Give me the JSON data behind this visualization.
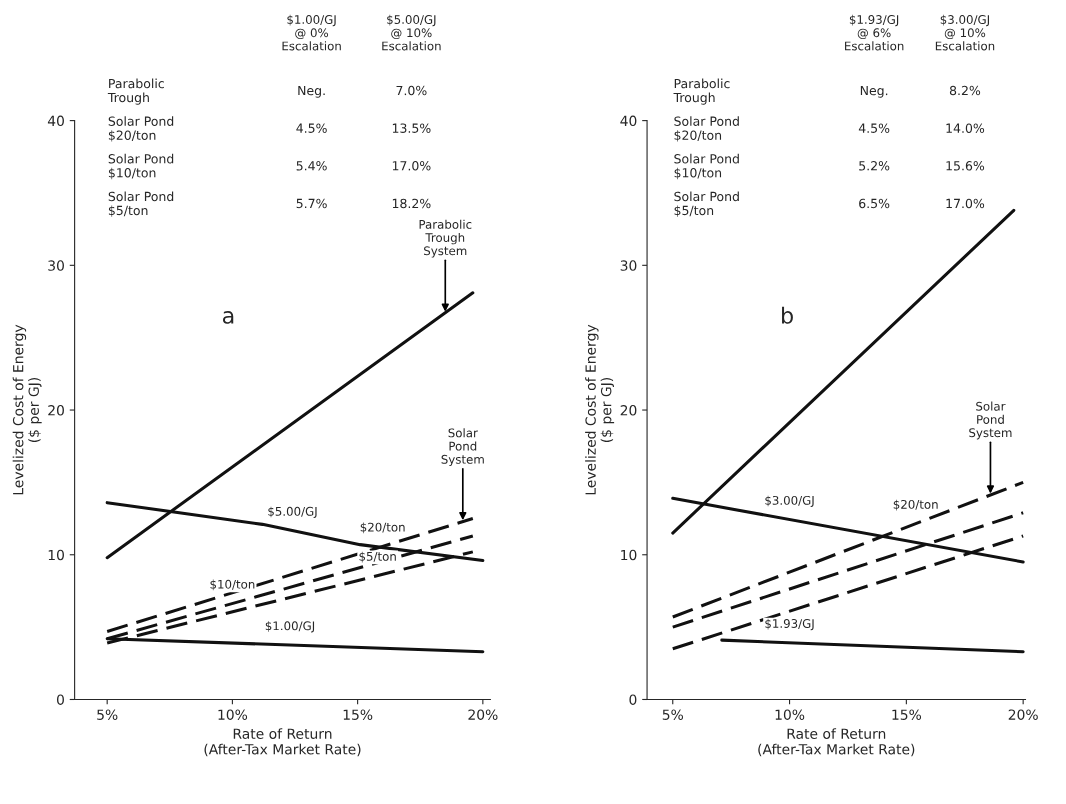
{
  "chart_data": [
    {
      "type": "line",
      "title": "a",
      "xlabel": "Rate of Return\n(After-Tax Market Rate)",
      "ylabel": "Levelized Cost of Energy\n($ per GJ)",
      "xlim": [
        3.7,
        20.3
      ],
      "ylim": [
        0,
        40
      ],
      "xticks": [
        {
          "value": 5,
          "label": "5%"
        },
        {
          "value": 10,
          "label": "10%"
        },
        {
          "value": 15,
          "label": "15%"
        },
        {
          "value": 20,
          "label": "20%"
        }
      ],
      "yticks": [
        0,
        10,
        20,
        30,
        40
      ],
      "series": [
        {
          "color": "#111111",
          "line_style": "solid",
          "x": [
            5,
            19.6
          ],
          "values": [
            9.8,
            28.1
          ]
        },
        {
          "color": "#111111",
          "line_style": "solid",
          "x": [
            5,
            11.2,
            15.1,
            20
          ],
          "values": [
            13.6,
            12.1,
            10.7,
            9.6
          ]
        },
        {
          "color": "#111111",
          "line_style": "solid",
          "x": [
            5,
            20
          ],
          "values": [
            4.2,
            3.3
          ]
        },
        {
          "color": "#111111",
          "line_style": "dashed",
          "x": [
            5,
            19.6
          ],
          "values": [
            4.7,
            12.5
          ]
        },
        {
          "color": "#111111",
          "line_style": "dashed",
          "x": [
            5,
            19.6
          ],
          "values": [
            4.2,
            11.3
          ]
        },
        {
          "color": "#111111",
          "line_style": "dashed",
          "x": [
            5,
            19.6
          ],
          "values": [
            3.9,
            10.2
          ]
        }
      ],
      "annotations": [
        "$1.00/GJ\n@ 0%\nEscalation",
        "$5.00/GJ\n@ 10%\nEscalation",
        "Parabolic\nTrough",
        "Neg.",
        "7.0%",
        "Solar Pond\n$20/ton",
        "4.5%",
        "13.5%",
        "Solar Pond\n$10/ton",
        "5.4%",
        "17.0%",
        "Solar Pond\n$5/ton",
        "5.7%",
        "18.2%",
        {
          "text": "Parabolic\nTrough\nSystem",
          "x": 18.5,
          "y": 26.7
        },
        {
          "text": "$5.00/GJ",
          "x": 12.4,
          "y": 11.67
        },
        {
          "text": "$1.00/GJ",
          "x": 12.3,
          "y": 3.76
        },
        {
          "text": "$20/ton",
          "x": 16,
          "y": 10.58
        },
        {
          "text": "$10/ton",
          "x": 10,
          "y": 6.63
        },
        {
          "text": "$5/ton",
          "x": 15.8,
          "y": 8.56
        },
        {
          "text": "Solar\nPond\nSystem",
          "x": 19.2,
          "y": 12.29
        }
      ]
    },
    {
      "type": "line",
      "title": "b",
      "xlabel": "Rate of Return\n(After-Tax Market Rate)",
      "ylabel": "Levelized Cost of Energy\n($ per GJ)",
      "xlim": [
        3.9,
        20.1
      ],
      "ylim": [
        0,
        40
      ],
      "xticks": [
        {
          "value": 5,
          "label": "5%"
        },
        {
          "value": 10,
          "label": "10%"
        },
        {
          "value": 15,
          "label": "15%"
        },
        {
          "value": 20,
          "label": "20%"
        }
      ],
      "yticks": [
        0,
        10,
        20,
        30,
        40
      ],
      "series": [
        {
          "color": "#111111",
          "line_style": "solid",
          "x": [
            5,
            19.6
          ],
          "values": [
            11.5,
            33.8
          ]
        },
        {
          "color": "#111111",
          "line_style": "solid",
          "x": [
            5,
            20
          ],
          "values": [
            13.9,
            9.5
          ]
        },
        {
          "color": "#111111",
          "line_style": "solid",
          "x": [
            7.1,
            20
          ],
          "values": [
            4.1,
            3.3
          ]
        },
        {
          "color": "#111111",
          "line_style": "dashed",
          "x": [
            5,
            20
          ],
          "values": [
            5.7,
            15.0
          ]
        },
        {
          "color": "#111111",
          "line_style": "dashed",
          "x": [
            5,
            20
          ],
          "values": [
            5.0,
            12.9
          ]
        },
        {
          "color": "#111111",
          "line_style": "dashed",
          "x": [
            5,
            20
          ],
          "values": [
            3.5,
            11.3
          ]
        }
      ],
      "annotations": [
        "$1.93/GJ\n@ 6%\nEscalation",
        "$3.00/GJ\n@ 10%\nEscalation",
        "Parabolic\nTrough",
        "Neg.",
        "8.2%",
        "Solar Pond\n$20/ton",
        "4.5%",
        "14.0%",
        "Solar Pond\n$10/ton",
        "5.2%",
        "15.6%",
        "Solar Pond\n$5/ton",
        "6.5%",
        "17.0%",
        {
          "text": "$3.00/GJ",
          "x": 10,
          "y": 12.43
        },
        {
          "text": "$1.93/GJ",
          "x": 10,
          "y": 3.92
        },
        {
          "text": "$20/ton",
          "x": 15.4,
          "y": 12.15
        },
        {
          "text": "Solar\nPond\nSystem",
          "x": 18.6,
          "y": 14.13
        }
      ]
    }
  ]
}
